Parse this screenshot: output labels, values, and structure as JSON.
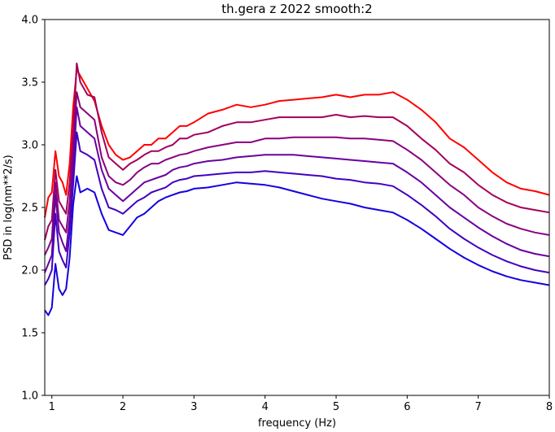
{
  "chart_data": {
    "type": "line",
    "title": "th.gera z 2022 smooth:2",
    "xlabel": "frequency (Hz)",
    "ylabel": "PSD in log(nm**2/s)",
    "xlim": [
      0.9,
      8.0
    ],
    "ylim": [
      1.0,
      4.0
    ],
    "xticks": [
      1,
      2,
      3,
      4,
      5,
      6,
      7,
      8
    ],
    "yticks": [
      1.0,
      1.5,
      2.0,
      2.5,
      3.0,
      3.5,
      4.0
    ],
    "xtick_labels": [
      "1",
      "2",
      "3",
      "4",
      "5",
      "6",
      "7",
      "8"
    ],
    "ytick_labels": [
      "1.0",
      "1.5",
      "2.0",
      "2.5",
      "3.0",
      "3.5",
      "4.0"
    ],
    "grid": false,
    "x": [
      0.9,
      0.95,
      1.0,
      1.05,
      1.1,
      1.15,
      1.2,
      1.25,
      1.3,
      1.35,
      1.4,
      1.5,
      1.6,
      1.7,
      1.8,
      1.9,
      2.0,
      2.1,
      2.2,
      2.3,
      2.4,
      2.5,
      2.6,
      2.7,
      2.8,
      2.9,
      3.0,
      3.2,
      3.4,
      3.6,
      3.8,
      4.0,
      4.2,
      4.4,
      4.6,
      4.8,
      5.0,
      5.2,
      5.4,
      5.6,
      5.8,
      6.0,
      6.2,
      6.4,
      6.6,
      6.8,
      7.0,
      7.2,
      7.4,
      7.6,
      7.8,
      8.0
    ],
    "series": [
      {
        "color": "#ff0000",
        "values": [
          2.42,
          2.58,
          2.62,
          2.95,
          2.75,
          2.7,
          2.6,
          2.85,
          3.3,
          3.6,
          3.55,
          3.45,
          3.35,
          3.15,
          3.0,
          2.92,
          2.88,
          2.9,
          2.95,
          3.0,
          3.0,
          3.05,
          3.05,
          3.1,
          3.15,
          3.15,
          3.18,
          3.25,
          3.28,
          3.32,
          3.3,
          3.32,
          3.35,
          3.36,
          3.37,
          3.38,
          3.4,
          3.38,
          3.4,
          3.4,
          3.42,
          3.36,
          3.28,
          3.18,
          3.05,
          2.98,
          2.88,
          2.78,
          2.7,
          2.65,
          2.63,
          2.6
        ]
      },
      {
        "color": "#a3005c",
        "values": [
          2.24,
          2.35,
          2.4,
          2.8,
          2.55,
          2.5,
          2.45,
          2.7,
          3.1,
          3.65,
          3.5,
          3.4,
          3.38,
          3.1,
          2.9,
          2.85,
          2.8,
          2.85,
          2.88,
          2.92,
          2.95,
          2.95,
          2.98,
          3.0,
          3.05,
          3.05,
          3.08,
          3.1,
          3.15,
          3.18,
          3.18,
          3.2,
          3.22,
          3.22,
          3.22,
          3.22,
          3.24,
          3.22,
          3.23,
          3.22,
          3.22,
          3.15,
          3.05,
          2.96,
          2.85,
          2.78,
          2.68,
          2.6,
          2.54,
          2.5,
          2.48,
          2.46
        ]
      },
      {
        "color": "#8a007f",
        "values": [
          2.12,
          2.18,
          2.25,
          2.7,
          2.4,
          2.35,
          2.3,
          2.55,
          2.95,
          3.42,
          3.3,
          3.25,
          3.2,
          2.9,
          2.75,
          2.7,
          2.68,
          2.72,
          2.78,
          2.82,
          2.85,
          2.85,
          2.88,
          2.9,
          2.92,
          2.93,
          2.95,
          2.98,
          3.0,
          3.02,
          3.02,
          3.05,
          3.05,
          3.06,
          3.06,
          3.06,
          3.06,
          3.05,
          3.05,
          3.04,
          3.03,
          2.96,
          2.88,
          2.78,
          2.68,
          2.6,
          2.5,
          2.43,
          2.37,
          2.33,
          2.3,
          2.28
        ]
      },
      {
        "color": "#6800a0",
        "values": [
          1.98,
          2.05,
          2.12,
          2.6,
          2.3,
          2.22,
          2.15,
          2.42,
          2.8,
          3.3,
          3.15,
          3.1,
          3.05,
          2.8,
          2.65,
          2.6,
          2.55,
          2.6,
          2.65,
          2.7,
          2.72,
          2.74,
          2.76,
          2.8,
          2.82,
          2.83,
          2.85,
          2.87,
          2.88,
          2.9,
          2.91,
          2.92,
          2.92,
          2.92,
          2.91,
          2.9,
          2.89,
          2.88,
          2.87,
          2.86,
          2.85,
          2.78,
          2.7,
          2.6,
          2.5,
          2.42,
          2.34,
          2.27,
          2.21,
          2.16,
          2.13,
          2.11
        ]
      },
      {
        "color": "#4200c0",
        "values": [
          1.88,
          1.93,
          2.0,
          2.45,
          2.15,
          2.08,
          2.02,
          2.3,
          2.68,
          3.1,
          2.95,
          2.92,
          2.88,
          2.65,
          2.5,
          2.48,
          2.45,
          2.5,
          2.55,
          2.58,
          2.62,
          2.64,
          2.66,
          2.7,
          2.72,
          2.73,
          2.75,
          2.76,
          2.77,
          2.78,
          2.78,
          2.79,
          2.78,
          2.77,
          2.76,
          2.75,
          2.73,
          2.72,
          2.7,
          2.69,
          2.67,
          2.6,
          2.52,
          2.43,
          2.33,
          2.25,
          2.18,
          2.12,
          2.07,
          2.03,
          2.0,
          1.98
        ]
      },
      {
        "color": "#1400e0",
        "values": [
          1.68,
          1.64,
          1.7,
          2.05,
          1.85,
          1.8,
          1.85,
          2.1,
          2.52,
          2.75,
          2.62,
          2.65,
          2.62,
          2.45,
          2.32,
          2.3,
          2.28,
          2.35,
          2.42,
          2.45,
          2.5,
          2.55,
          2.58,
          2.6,
          2.62,
          2.63,
          2.65,
          2.66,
          2.68,
          2.7,
          2.69,
          2.68,
          2.66,
          2.63,
          2.6,
          2.57,
          2.55,
          2.53,
          2.5,
          2.48,
          2.46,
          2.4,
          2.33,
          2.25,
          2.17,
          2.1,
          2.04,
          1.99,
          1.95,
          1.92,
          1.9,
          1.88
        ]
      }
    ]
  }
}
